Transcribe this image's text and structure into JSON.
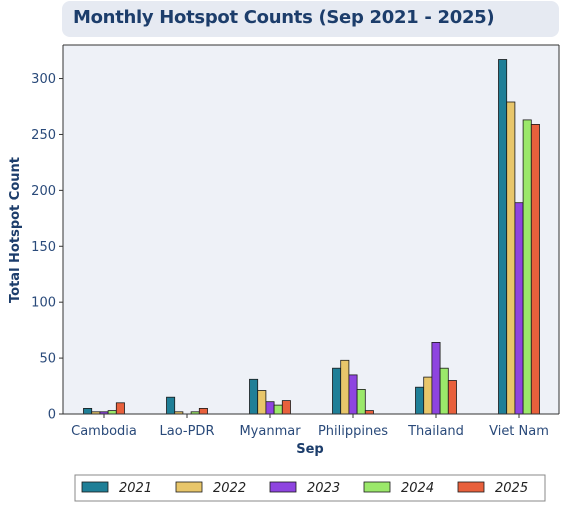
{
  "chart_data": {
    "type": "bar",
    "title": "Monthly Hotspot Counts (Sep 2021 - 2025)",
    "xlabel": "Sep",
    "ylabel": "Total Hotspot Count",
    "categories": [
      "Cambodia",
      "Lao-PDR",
      "Myanmar",
      "Philippines",
      "Thailand",
      "Viet Nam"
    ],
    "ylim": [
      0,
      330
    ],
    "yticks": [
      0,
      50,
      100,
      150,
      200,
      250,
      300
    ],
    "grid": false,
    "legend_position": "bottom",
    "series": [
      {
        "name": "2021",
        "color": "#1f7f97",
        "values": [
          5,
          15,
          31,
          41,
          24,
          317
        ]
      },
      {
        "name": "2022",
        "color": "#e8c66a",
        "values": [
          2,
          2,
          21,
          48,
          33,
          279
        ]
      },
      {
        "name": "2023",
        "color": "#8e44e0",
        "values": [
          2,
          0,
          11,
          35,
          64,
          189
        ]
      },
      {
        "name": "2024",
        "color": "#9be86a",
        "values": [
          3,
          2,
          8,
          22,
          41,
          263
        ]
      },
      {
        "name": "2025",
        "color": "#e8603c",
        "values": [
          10,
          5,
          12,
          3,
          30,
          259
        ]
      }
    ]
  }
}
